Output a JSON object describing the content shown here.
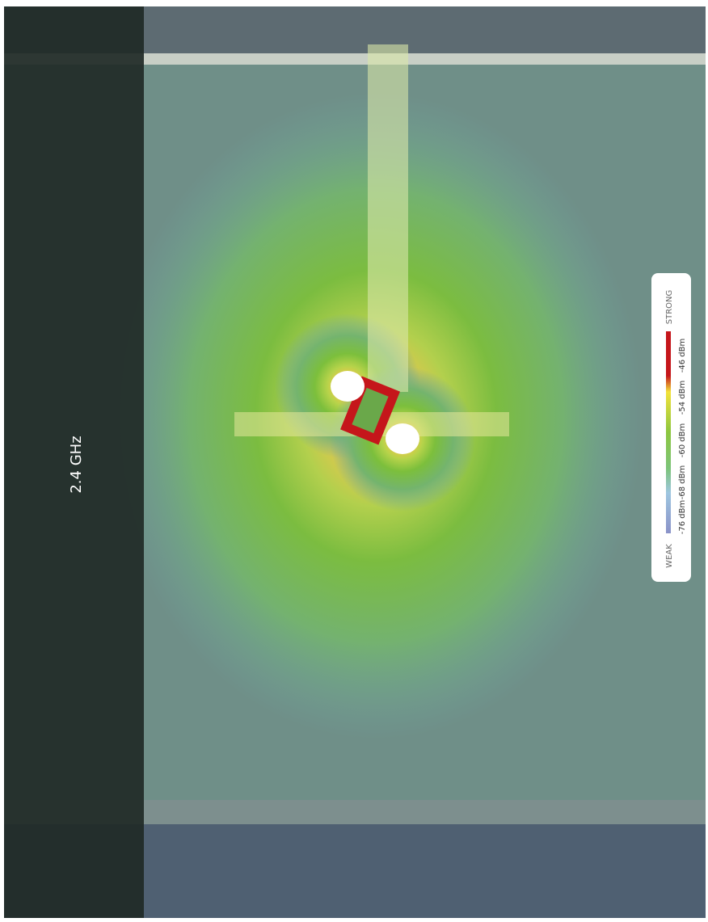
{
  "band_label": "2.4 GHz",
  "legend": {
    "strong": "STRONG",
    "weak": "WEAK",
    "levels": [
      "-46 dBm",
      "-54 dBm",
      "-60 dBm",
      "-68 dBm",
      "-76 dBm"
    ]
  }
}
